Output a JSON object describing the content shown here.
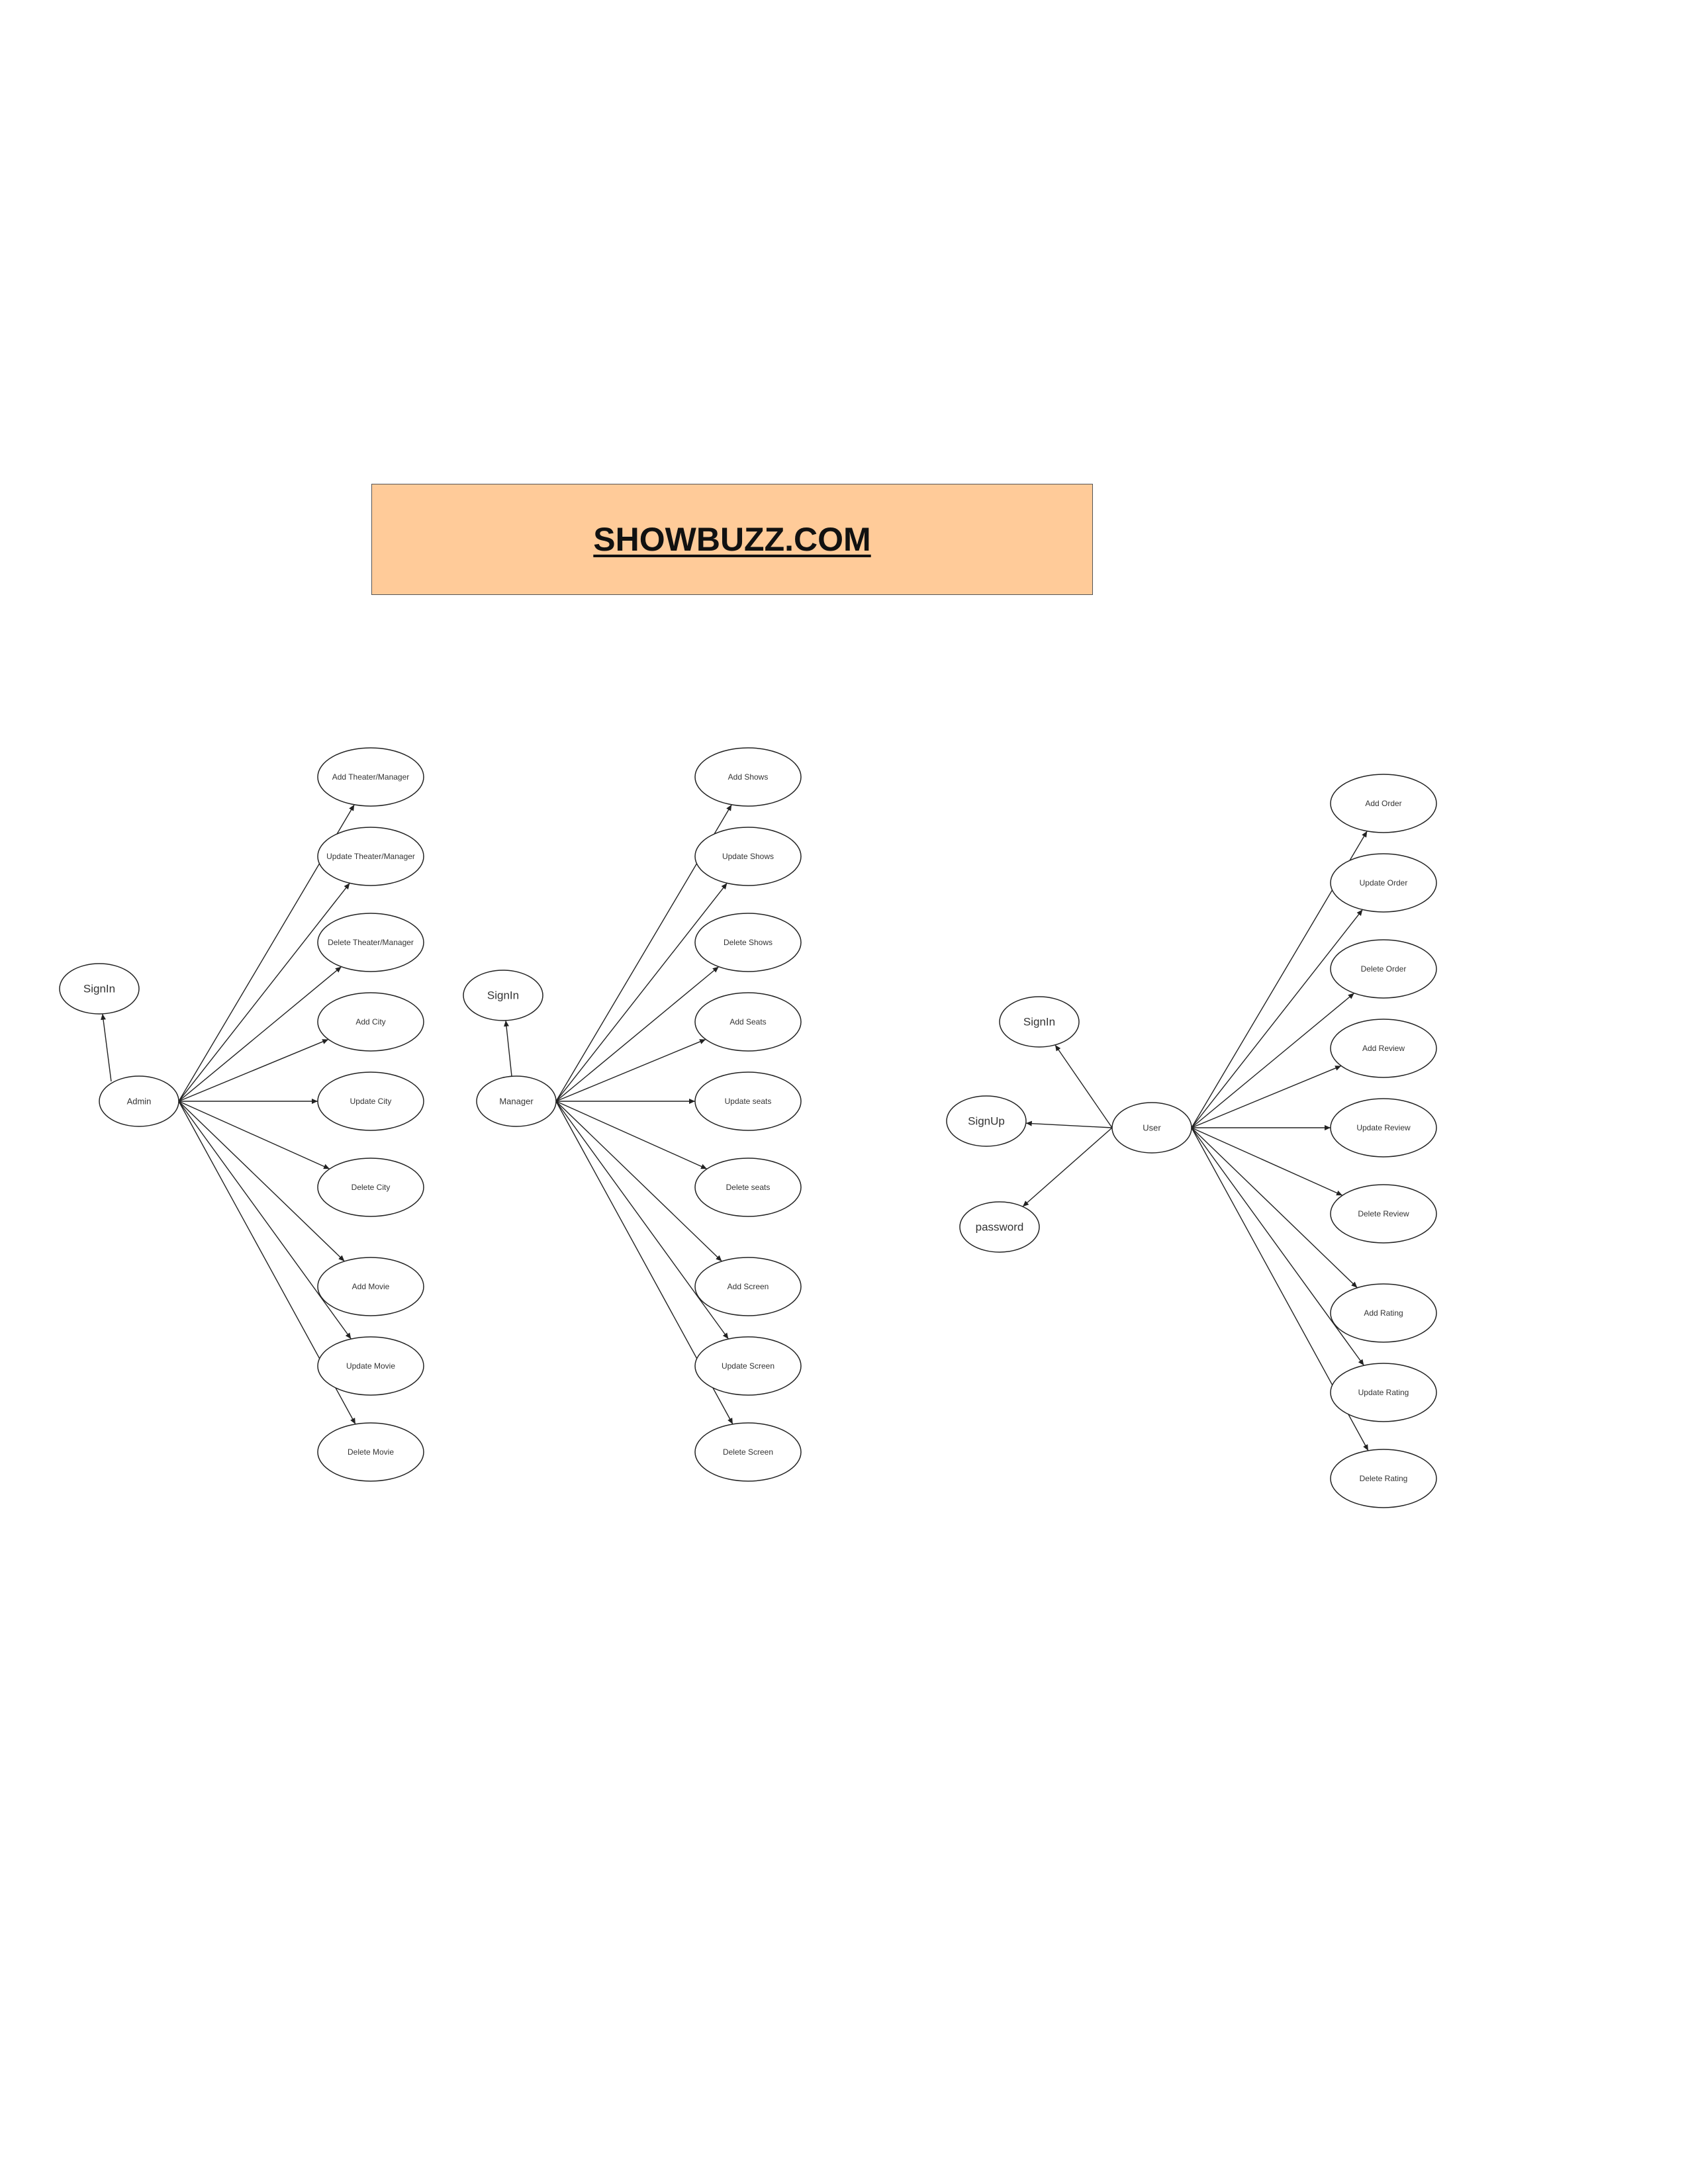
{
  "title": "SHOWBUZZ.COM",
  "colors": {
    "title_fill": "#ffcb99",
    "stroke": "#222222"
  },
  "diagram": {
    "actors": [
      {
        "id": "admin",
        "label": "Admin",
        "auth": [
          {
            "label": "SignIn"
          }
        ],
        "actions": [
          "Add Theater/Manager",
          "Update Theater/Manager",
          "Delete Theater/Manager",
          "Add City",
          "Update City",
          "Delete City",
          "Add Movie",
          "Update Movie",
          "Delete Movie"
        ]
      },
      {
        "id": "manager",
        "label": "Manager",
        "auth": [
          {
            "label": "SignIn"
          }
        ],
        "actions": [
          "Add Shows",
          "Update Shows",
          "Delete Shows",
          "Add Seats",
          "Update seats",
          "Delete seats",
          "Add Screen",
          "Update Screen",
          "Delete Screen"
        ]
      },
      {
        "id": "user",
        "label": "User",
        "auth": [
          {
            "label": "SignIn"
          },
          {
            "label": "SignUp"
          },
          {
            "label": "password"
          }
        ],
        "actions": [
          "Add Order",
          "Update  Order",
          "Delete Order",
          "Add Review",
          "Update Review",
          "Delete Review",
          "Add Rating",
          "Update Rating",
          "Delete Rating"
        ]
      }
    ]
  }
}
